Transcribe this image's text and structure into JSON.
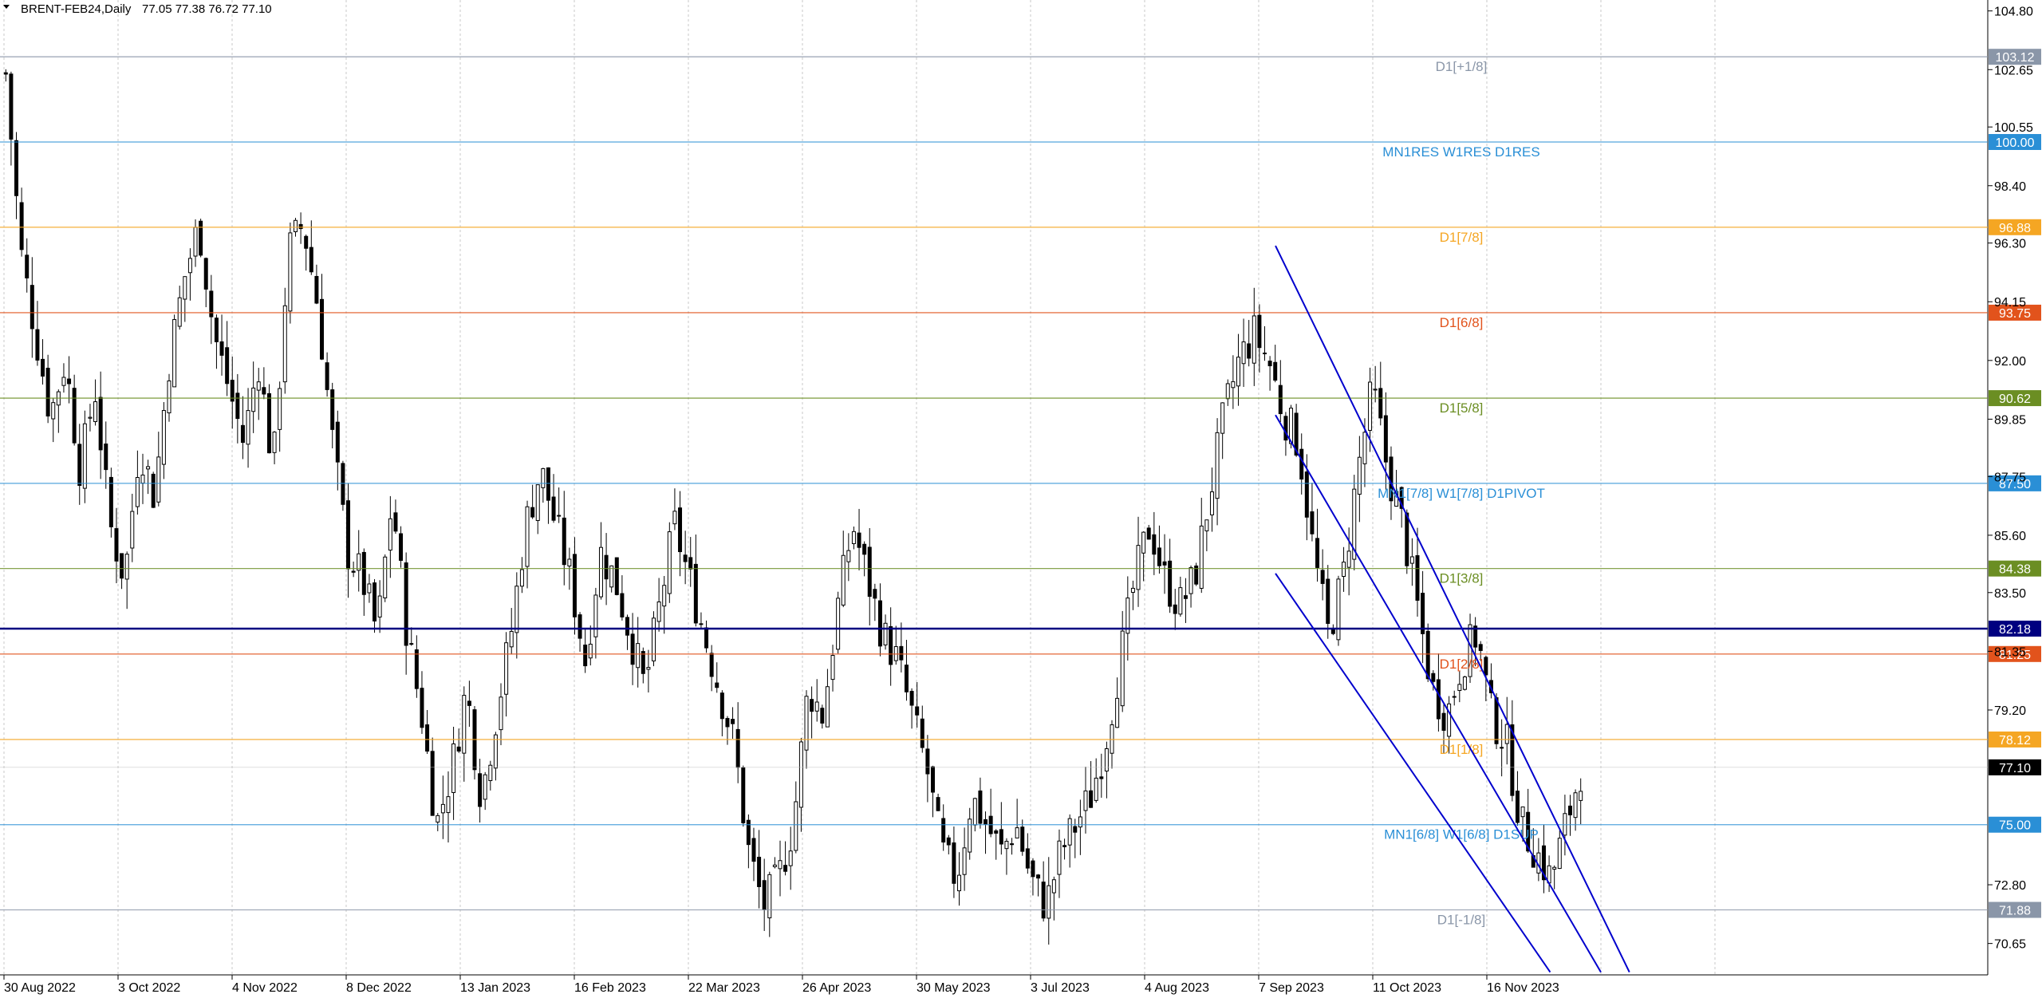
{
  "header": {
    "symbol": "BRENT-FEB24,Daily",
    "ohlc": "77.05 77.38 76.72 77.10",
    "menu_icon": "triangle-down-icon"
  },
  "chart_data": {
    "type": "candlestick",
    "title": "BRENT-FEB24,Daily",
    "ylim": [
      69.5,
      105.2
    ],
    "y_ticks": [
      "104.80",
      "102.65",
      "100.55",
      "98.40",
      "96.30",
      "94.15",
      "92.00",
      "89.85",
      "87.75",
      "85.60",
      "83.50",
      "81.35",
      "79.20",
      "72.80",
      "70.65"
    ],
    "x_ticks": [
      "30 Aug 2022",
      "3 Oct 2022",
      "4 Nov 2022",
      "8 Dec 2022",
      "13 Jan 2023",
      "16 Feb 2023",
      "22 Mar 2023",
      "26 Apr 2023",
      "30 May 2023",
      "3 Jul 2023",
      "4 Aug 2023",
      "7 Sep 2023",
      "11 Oct 2023",
      "16 Nov 2023"
    ],
    "grid": true,
    "levels": [
      {
        "value": 103.12,
        "label": "D1[+1/8]",
        "price": "103.12",
        "color": "#8a96a8"
      },
      {
        "value": 100.0,
        "label": "MN1RES W1RES D1RES",
        "price": "100.00",
        "color": "#2a8fd6"
      },
      {
        "value": 96.88,
        "label": "D1[7/8]",
        "price": "96.88",
        "color": "#f5a623"
      },
      {
        "value": 93.75,
        "label": "D1[6/8]",
        "price": "93.75",
        "color": "#e2531c"
      },
      {
        "value": 90.62,
        "label": "D1[5/8]",
        "price": "90.62",
        "color": "#6b8e23"
      },
      {
        "value": 87.5,
        "label": "MN1[7/8] W1[7/8] D1PIVOT",
        "price": "87.50",
        "color": "#2a8fd6"
      },
      {
        "value": 84.38,
        "label": "D1[3/8]",
        "price": "84.38",
        "color": "#6b8e23"
      },
      {
        "value": 82.18,
        "label": "",
        "price": "82.18",
        "color": "#000080"
      },
      {
        "value": 81.25,
        "label": "D1[2/8]",
        "price": "81.25",
        "color": "#e2531c"
      },
      {
        "value": 78.12,
        "label": "D1[1/8]",
        "price": "78.12",
        "color": "#f5a623"
      },
      {
        "value": 77.1,
        "label": "",
        "price": "77.10",
        "color": "#000000"
      },
      {
        "value": 75.0,
        "label": "MN1[6/8] W1[6/8] D1SUP",
        "price": "75.00",
        "color": "#2a8fd6"
      },
      {
        "value": 71.88,
        "label": "D1[-1/8]",
        "price": "71.88",
        "color": "#8a96a8"
      }
    ],
    "close_path": [
      102.5,
      96,
      93,
      90,
      92,
      88,
      91,
      86,
      84,
      89,
      87,
      92,
      95,
      97,
      93,
      91,
      89,
      92,
      88,
      96,
      97,
      94,
      89,
      85,
      84,
      82,
      87,
      82,
      79,
      75,
      77,
      80,
      76,
      79,
      82,
      86,
      88,
      86,
      84,
      81,
      85,
      84,
      82,
      80,
      83,
      86,
      84,
      82,
      80,
      78,
      74,
      72,
      73,
      75,
      80,
      79,
      83,
      86,
      84,
      82,
      81,
      79,
      77,
      74,
      73,
      76,
      75,
      74,
      75,
      73,
      72,
      74,
      75,
      76,
      78,
      81,
      84,
      86,
      84,
      83,
      84,
      87,
      90,
      92,
      93,
      92,
      90,
      89,
      85,
      82,
      84,
      88,
      91,
      88,
      86,
      83,
      80,
      79,
      81,
      82,
      79,
      78,
      75,
      74,
      73,
      75,
      77
    ],
    "channel_lines": [
      {
        "x1": "2023-09-12",
        "y1": 96.2,
        "x2": "2023-12-31",
        "y2": 69.6
      },
      {
        "x1": "2023-09-12",
        "y1": 90.0,
        "x2": "2023-12-22",
        "y2": 69.6
      },
      {
        "x1": "2023-09-12",
        "y1": 84.2,
        "x2": "2023-12-06",
        "y2": 69.6
      }
    ],
    "colors": {
      "candle": "#000000",
      "grid": "#c8c8c8",
      "channel": "#0000cd",
      "axis": "#000000"
    }
  }
}
